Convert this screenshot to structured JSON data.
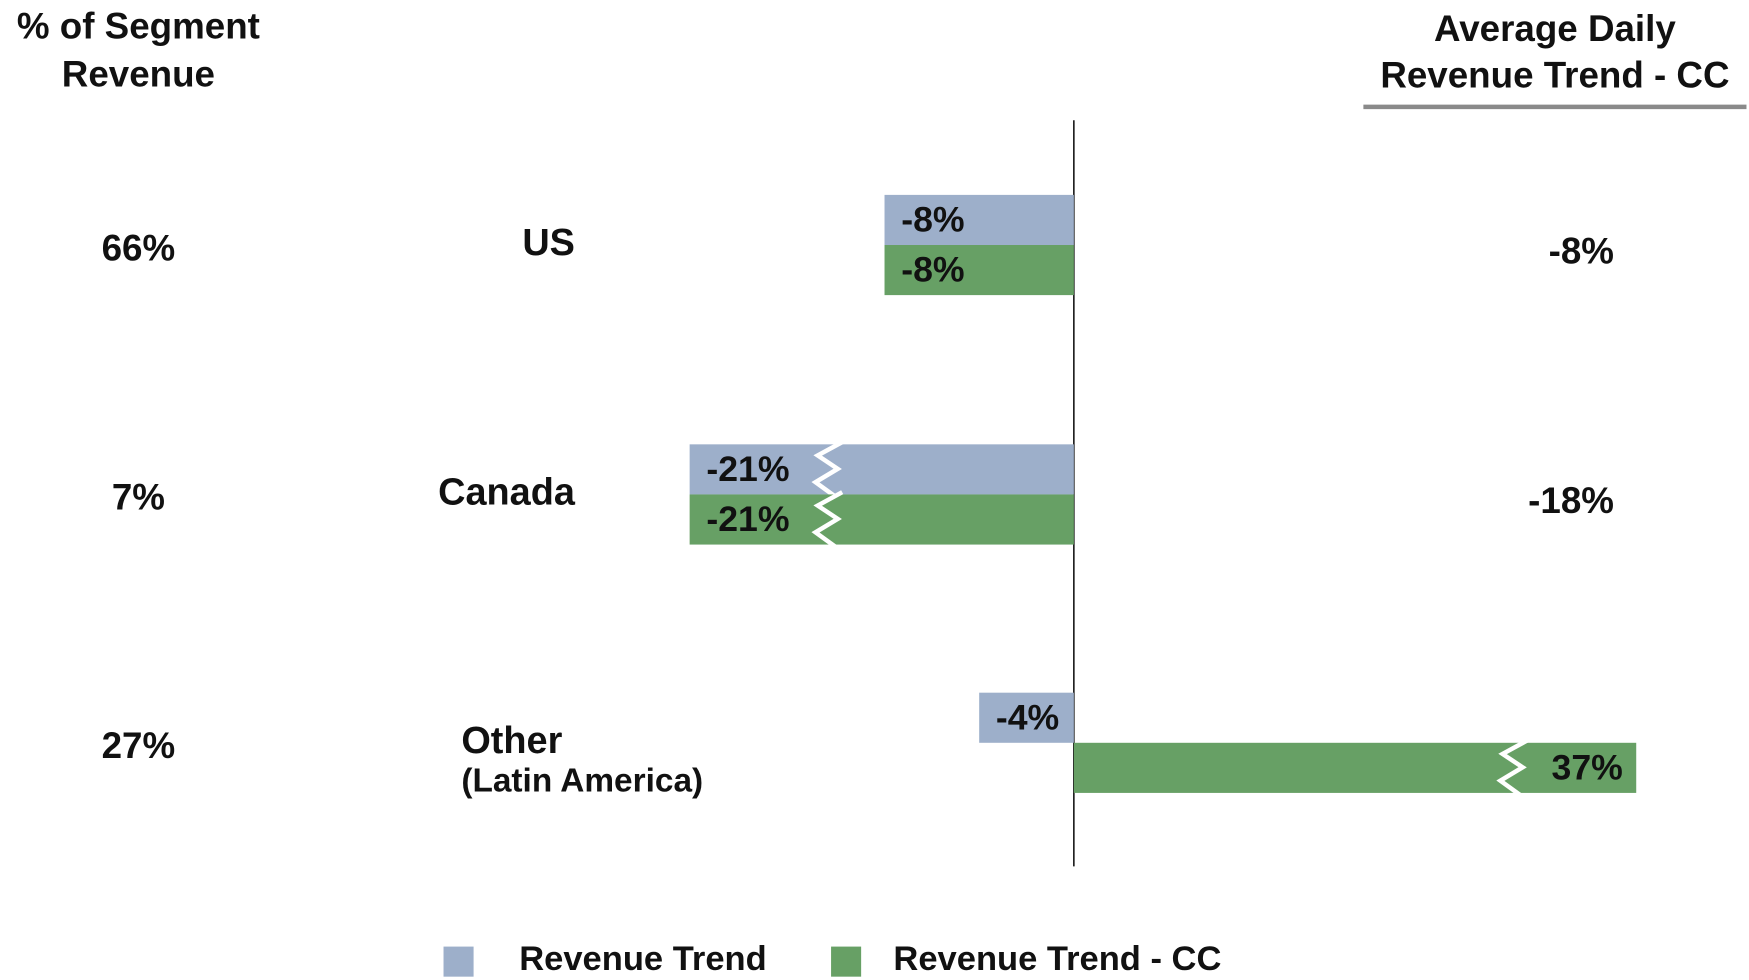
{
  "chart_data": {
    "type": "bar",
    "orientation": "horizontal",
    "categories": [
      "US",
      "Canada",
      "Other"
    ],
    "category_subtitles": [
      null,
      null,
      "(Latin America)"
    ],
    "series": [
      {
        "name": "Revenue Trend",
        "color": "#9dafca",
        "values": [
          -8,
          -21,
          -4
        ],
        "value_labels": [
          "-8%",
          "-21%",
          "-4%"
        ]
      },
      {
        "name": "Revenue Trend - CC",
        "color": "#67a065",
        "values": [
          -8,
          -21,
          37
        ],
        "value_labels": [
          "-8%",
          "-21%",
          "37%"
        ]
      }
    ],
    "legend": "bottom",
    "left_column": {
      "title_lines": [
        "% of Segment",
        "Revenue"
      ],
      "values": [
        66,
        7,
        27
      ],
      "value_labels": [
        "66%",
        "7%",
        "27%"
      ]
    },
    "right_column": {
      "title_lines": [
        "Average Daily",
        "Revenue Trend - CC"
      ],
      "values": [
        -8,
        -18,
        null
      ],
      "value_labels": [
        "-8%",
        "-18%",
        null
      ]
    }
  }
}
